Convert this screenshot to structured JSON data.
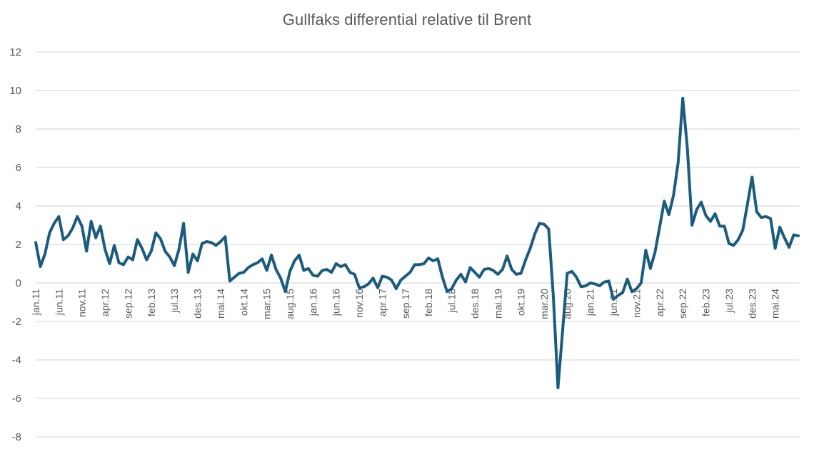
{
  "chart_data": {
    "type": "line",
    "title": "Gullfaks differential relative til Brent",
    "xlabel": "",
    "ylabel": "",
    "ylim": [
      -8,
      12
    ],
    "yticks": [
      12,
      10,
      8,
      6,
      4,
      2,
      0,
      -2,
      -4,
      -6,
      -8
    ],
    "grid": true,
    "legend": "none",
    "colors": {
      "series": "#1b5c7e",
      "grid": "#d9d9d9",
      "text": "#595959"
    },
    "x_tick_labels": [
      {
        "index": 0,
        "label": "jan.11"
      },
      {
        "index": 5,
        "label": "jun.11"
      },
      {
        "index": 10,
        "label": "nov.11"
      },
      {
        "index": 15,
        "label": "apr.12"
      },
      {
        "index": 20,
        "label": "sep.12"
      },
      {
        "index": 25,
        "label": "feb.13"
      },
      {
        "index": 30,
        "label": "jul.13"
      },
      {
        "index": 35,
        "label": "des.13"
      },
      {
        "index": 40,
        "label": "mai.14"
      },
      {
        "index": 45,
        "label": "okt.14"
      },
      {
        "index": 50,
        "label": "mar.15"
      },
      {
        "index": 55,
        "label": "aug.15"
      },
      {
        "index": 60,
        "label": "jan.16"
      },
      {
        "index": 65,
        "label": "jun.16"
      },
      {
        "index": 70,
        "label": "nov.16"
      },
      {
        "index": 75,
        "label": "apr.17"
      },
      {
        "index": 80,
        "label": "sep.17"
      },
      {
        "index": 85,
        "label": "feb.18"
      },
      {
        "index": 90,
        "label": "jul.18"
      },
      {
        "index": 95,
        "label": "des.18"
      },
      {
        "index": 100,
        "label": "mai.19"
      },
      {
        "index": 105,
        "label": "okt.19"
      },
      {
        "index": 110,
        "label": "mar.20"
      },
      {
        "index": 115,
        "label": "aug.20"
      },
      {
        "index": 120,
        "label": "jan.21"
      },
      {
        "index": 125,
        "label": "jun.21"
      },
      {
        "index": 130,
        "label": "nov.21"
      },
      {
        "index": 135,
        "label": "apr.22"
      },
      {
        "index": 140,
        "label": "sep.22"
      },
      {
        "index": 145,
        "label": "feb.23"
      },
      {
        "index": 150,
        "label": "jul.23"
      },
      {
        "index": 155,
        "label": "des.23"
      },
      {
        "index": 160,
        "label": "mai.24"
      }
    ],
    "series": [
      {
        "values": [
          2.1,
          0.85,
          1.5,
          2.6,
          3.1,
          3.45,
          2.25,
          2.45,
          2.85,
          3.45,
          2.95,
          1.65,
          3.2,
          2.35,
          2.95,
          1.75,
          1.0,
          1.95,
          1.05,
          0.95,
          1.35,
          1.2,
          2.25,
          1.8,
          1.2,
          1.65,
          2.6,
          2.3,
          1.65,
          1.35,
          0.9,
          1.75,
          3.1,
          0.55,
          1.5,
          1.15,
          2.05,
          2.15,
          2.1,
          1.95,
          2.15,
          2.4,
          0.1,
          0.3,
          0.5,
          0.55,
          0.8,
          0.95,
          1.05,
          1.25,
          0.65,
          1.45,
          0.7,
          0.25,
          -0.45,
          0.6,
          1.15,
          1.45,
          0.65,
          0.75,
          0.4,
          0.35,
          0.65,
          0.7,
          0.55,
          1.0,
          0.85,
          0.95,
          0.55,
          0.45,
          -0.25,
          -0.2,
          -0.05,
          0.25,
          -0.25,
          0.35,
          0.3,
          0.15,
          -0.3,
          0.15,
          0.35,
          0.55,
          0.95,
          0.95,
          1.0,
          1.3,
          1.15,
          1.25,
          0.3,
          -0.45,
          -0.3,
          0.15,
          0.45,
          0.05,
          0.8,
          0.55,
          0.3,
          0.7,
          0.75,
          0.65,
          0.45,
          0.7,
          1.4,
          0.7,
          0.45,
          0.5,
          1.2,
          1.8,
          2.55,
          3.1,
          3.05,
          2.8,
          -0.7,
          -5.45,
          -2.5,
          0.5,
          0.6,
          0.3,
          -0.2,
          -0.15,
          0.0,
          -0.05,
          -0.15,
          0.05,
          0.1,
          -0.85,
          -0.65,
          -0.5,
          0.2,
          -0.45,
          -0.3,
          0.0,
          1.7,
          0.75,
          1.6,
          2.9,
          4.25,
          3.55,
          4.55,
          6.25,
          9.6,
          7.0,
          3.0,
          3.8,
          4.2,
          3.5,
          3.2,
          3.6,
          2.95,
          2.95,
          2.05,
          1.95,
          2.25,
          2.75,
          4.1,
          5.5,
          3.7,
          3.4,
          3.45,
          3.35,
          1.8,
          2.9,
          2.35,
          1.85,
          2.5,
          2.45
        ]
      }
    ]
  }
}
